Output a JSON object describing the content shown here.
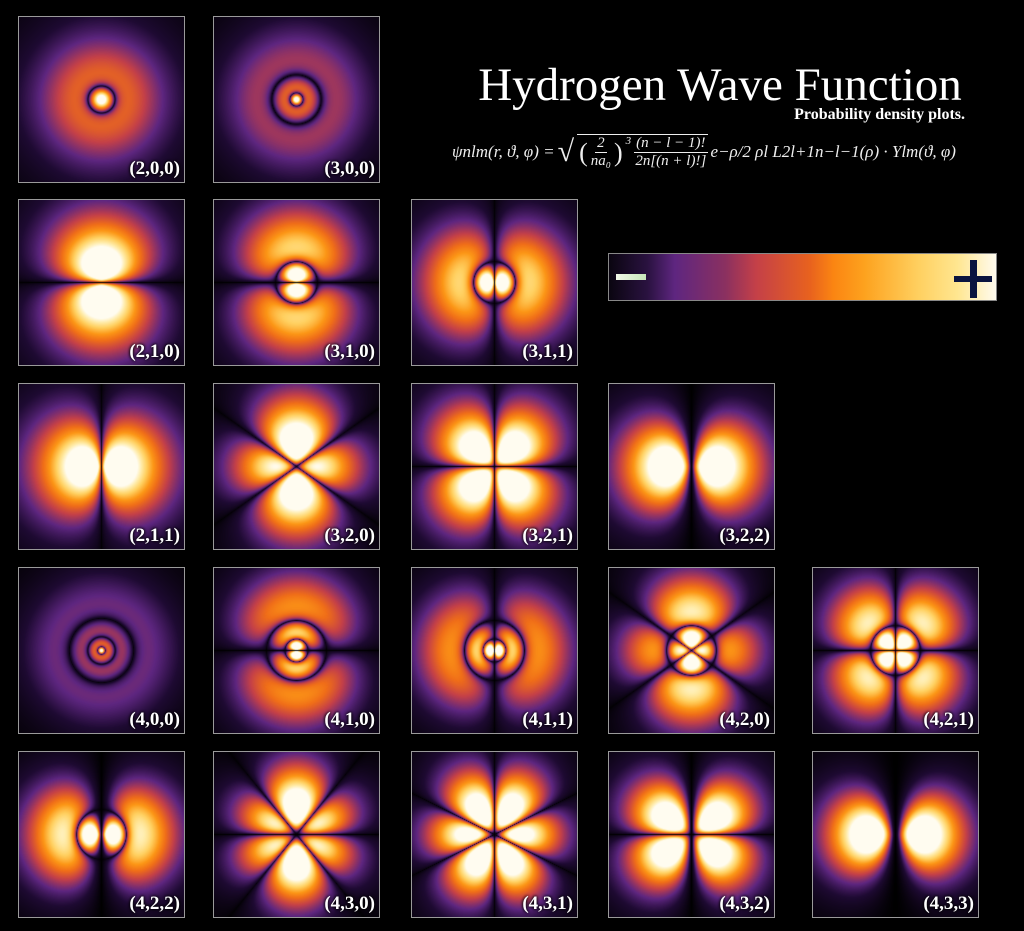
{
  "title": "Hydrogen Wave Function",
  "subtitle": "Probability density plots.",
  "formula": {
    "lhs": "ψnlm(r, ϑ, φ) =",
    "frac1_num": "2",
    "frac1_den": "na₀",
    "power": "3",
    "frac2_num": "(n − l − 1)!",
    "frac2_den": "2n[(n + l)!]",
    "rhs": "e−ρ/2 ρl L2l+1n−l−1(ρ) · Ylm(ϑ, φ)"
  },
  "colorbar": {
    "minus_label": "−",
    "plus_label": "+",
    "colormap": [
      "#000000",
      "#5e2680",
      "#c44048",
      "#fb8512",
      "#fda21e",
      "#ffe690",
      "#fffbee"
    ]
  },
  "panels": [
    {
      "label": "(2,0,0)",
      "n": 2,
      "l": 0,
      "m": 0
    },
    {
      "label": "(3,0,0)",
      "n": 3,
      "l": 0,
      "m": 0
    },
    {
      "label": "(2,1,0)",
      "n": 2,
      "l": 1,
      "m": 0
    },
    {
      "label": "(3,1,0)",
      "n": 3,
      "l": 1,
      "m": 0
    },
    {
      "label": "(3,1,1)",
      "n": 3,
      "l": 1,
      "m": 1
    },
    {
      "label": "(2,1,1)",
      "n": 2,
      "l": 1,
      "m": 1
    },
    {
      "label": "(3,2,0)",
      "n": 3,
      "l": 2,
      "m": 0
    },
    {
      "label": "(3,2,1)",
      "n": 3,
      "l": 2,
      "m": 1
    },
    {
      "label": "(3,2,2)",
      "n": 3,
      "l": 2,
      "m": 2
    },
    {
      "label": "(4,0,0)",
      "n": 4,
      "l": 0,
      "m": 0
    },
    {
      "label": "(4,1,0)",
      "n": 4,
      "l": 1,
      "m": 0
    },
    {
      "label": "(4,1,1)",
      "n": 4,
      "l": 1,
      "m": 1
    },
    {
      "label": "(4,2,0)",
      "n": 4,
      "l": 2,
      "m": 0
    },
    {
      "label": "(4,2,1)",
      "n": 4,
      "l": 2,
      "m": 1
    },
    {
      "label": "(4,2,2)",
      "n": 4,
      "l": 2,
      "m": 2
    },
    {
      "label": "(4,3,0)",
      "n": 4,
      "l": 3,
      "m": 0
    },
    {
      "label": "(4,3,1)",
      "n": 4,
      "l": 3,
      "m": 1
    },
    {
      "label": "(4,3,2)",
      "n": 4,
      "l": 3,
      "m": 2
    },
    {
      "label": "(4,3,3)",
      "n": 4,
      "l": 3,
      "m": 3
    }
  ]
}
